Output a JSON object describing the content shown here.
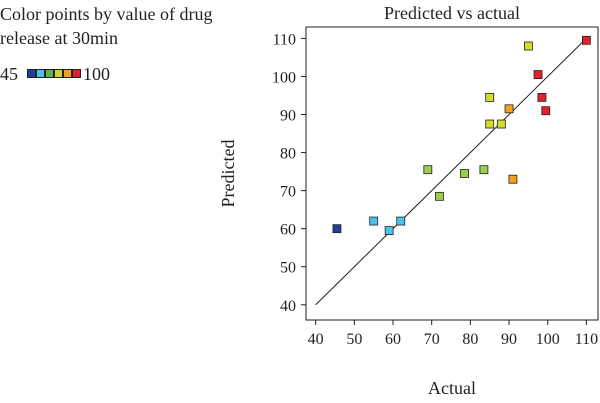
{
  "chart_data": {
    "type": "scatter",
    "title": "Predicted vs actual",
    "xlabel": "Actual",
    "ylabel": "Predicted",
    "xlim": [
      37.5,
      113
    ],
    "ylim": [
      36,
      113
    ],
    "xticks": [
      40,
      50,
      60,
      70,
      80,
      90,
      100,
      110
    ],
    "yticks": [
      40,
      50,
      60,
      70,
      80,
      90,
      100,
      110
    ],
    "grid": false,
    "reference_line": {
      "from": [
        40,
        40
      ],
      "to": [
        110,
        110
      ]
    },
    "color_legend": {
      "title": "Color points by value of drug release at 30min",
      "min_label": "45",
      "max_label": "100",
      "colors": [
        "#1f3f9a",
        "#49c2ec",
        "#5fb04a",
        "#c6d82b",
        "#f4a11d",
        "#e4202a"
      ]
    },
    "points": [
      {
        "x": 45.5,
        "y": 60,
        "color": "#1f3f9a"
      },
      {
        "x": 55,
        "y": 62,
        "color": "#49c2ec"
      },
      {
        "x": 59,
        "y": 59.5,
        "color": "#49c2ec"
      },
      {
        "x": 62,
        "y": 62,
        "color": "#49c2ec"
      },
      {
        "x": 69,
        "y": 75.5,
        "color": "#9ccc4b"
      },
      {
        "x": 72,
        "y": 68.5,
        "color": "#9ccc4b"
      },
      {
        "x": 78.5,
        "y": 74.5,
        "color": "#9ccc4b"
      },
      {
        "x": 83.5,
        "y": 75.5,
        "color": "#9ccc4b"
      },
      {
        "x": 85,
        "y": 94.5,
        "color": "#d5dc2a"
      },
      {
        "x": 85,
        "y": 87.5,
        "color": "#d5dc2a"
      },
      {
        "x": 88,
        "y": 87.5,
        "color": "#d5dc2a"
      },
      {
        "x": 90,
        "y": 91.5,
        "color": "#f4a11d"
      },
      {
        "x": 91,
        "y": 73,
        "color": "#f4a11d"
      },
      {
        "x": 95,
        "y": 108,
        "color": "#d5dc2a"
      },
      {
        "x": 97.5,
        "y": 100.5,
        "color": "#e4202a"
      },
      {
        "x": 98.5,
        "y": 94.5,
        "color": "#e4202a"
      },
      {
        "x": 99.5,
        "y": 91,
        "color": "#e4202a"
      },
      {
        "x": 110,
        "y": 109.5,
        "color": "#e4202a"
      }
    ]
  }
}
